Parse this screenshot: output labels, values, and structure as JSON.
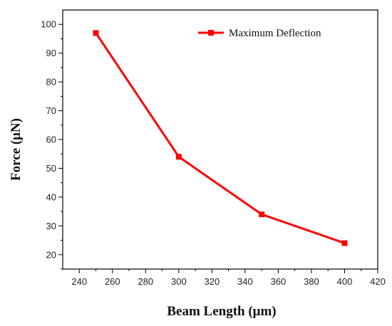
{
  "chart_data": {
    "type": "line",
    "xlabel": "Beam Length (μm)",
    "ylabel": "Force (μN)",
    "xlim": [
      230,
      420
    ],
    "ylim": [
      15,
      105
    ],
    "x_ticks": [
      240,
      260,
      280,
      300,
      320,
      340,
      360,
      380,
      400,
      420
    ],
    "y_ticks": [
      20,
      30,
      40,
      50,
      60,
      70,
      80,
      90,
      100
    ],
    "grid": false,
    "legend_position": "top-right",
    "series": [
      {
        "name": "Maximum Deflection",
        "color": "#ff0000",
        "marker": "square",
        "x": [
          250,
          300,
          350,
          400
        ],
        "y": [
          97,
          54,
          34,
          24
        ]
      }
    ]
  }
}
